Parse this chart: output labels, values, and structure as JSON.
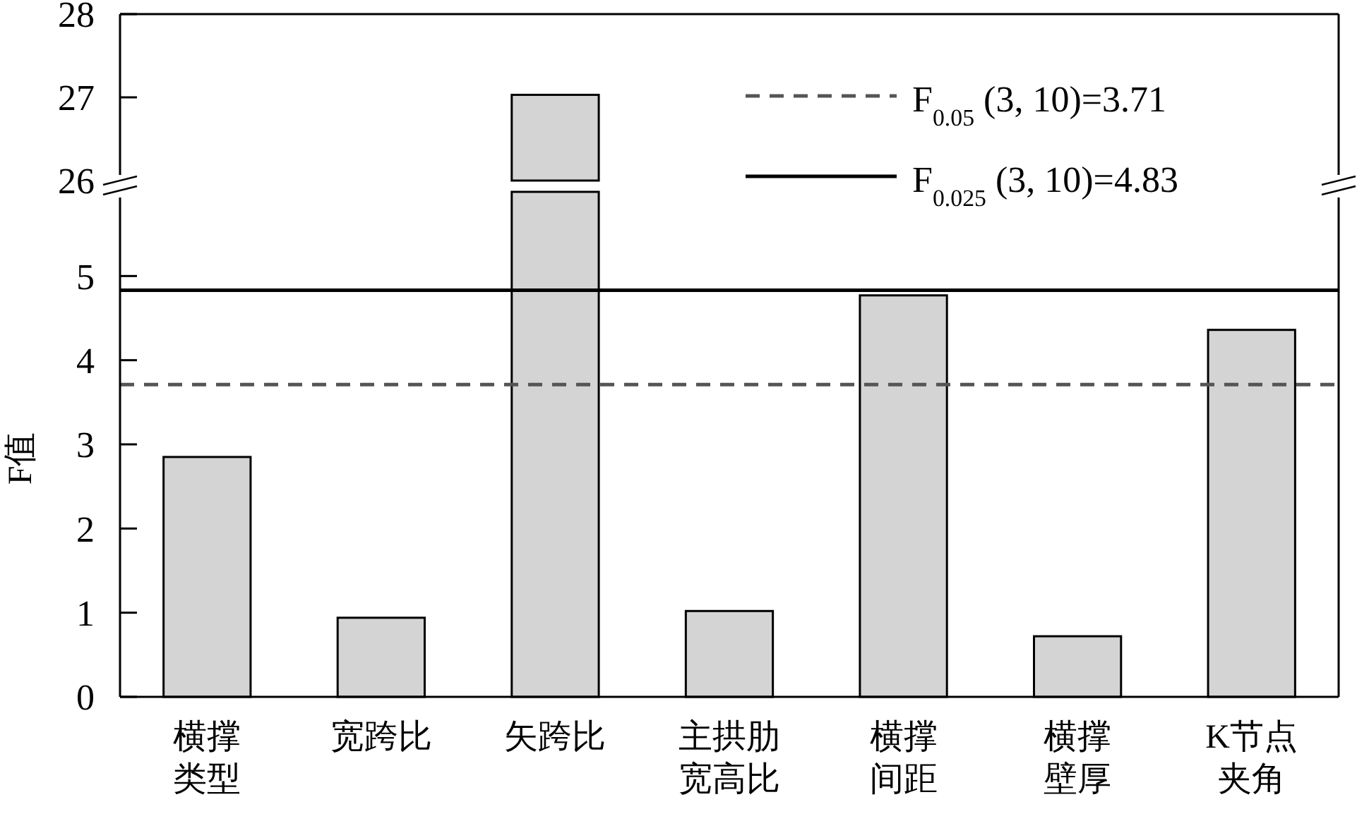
{
  "chart_data": [
    {
      "type": "bar",
      "values": [
        null,
        null,
        27.03,
        null,
        null,
        null,
        null
      ],
      "color": "#d4d4d4",
      "ylim": [
        26,
        28
      ],
      "yticks": [
        26,
        27,
        28
      ],
      "tick_labels": "y"
    },
    {
      "type": "bar",
      "categories": [
        "横撑类型",
        "宽跨比",
        "矢跨比",
        "主拱肋宽高比",
        "横撑间距",
        "横撑壁厚",
        "K节点夹角"
      ],
      "values": [
        2.85,
        0.94,
        6,
        1.02,
        4.77,
        0.72,
        4.36
      ],
      "color": "#d4d4d4",
      "ylim": [
        0,
        6
      ],
      "yticks": [
        0,
        1,
        2,
        3,
        4,
        5
      ],
      "ylabel": "F值",
      "legend": "top right",
      "ref_lines": [
        {
          "axis": "y",
          "value": 3.71,
          "label": "F$_{0.05}$(3, 10)=3.71",
          "color": "#555555",
          "line_style": "dashed"
        },
        {
          "axis": "y",
          "value": 4.83,
          "label": "F$_{0.025}$(3, 10)=4.83",
          "color": "#000000",
          "line_style": "solid"
        }
      ]
    }
  ]
}
